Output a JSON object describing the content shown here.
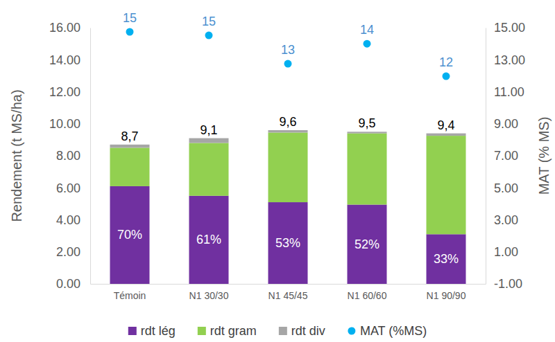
{
  "chart_data": {
    "type": "bar",
    "stacked": true,
    "grid": false,
    "legend": "bottom",
    "categories": [
      "Témoin",
      "N1 30/30",
      "N1 45/45",
      "N1 60/60",
      "N1 90/90"
    ],
    "y_label": "Rendement (t MS/ha)",
    "y2_label": "MAT (% MS)",
    "ylim": [
      0,
      16
    ],
    "yticks": [
      {
        "value": 0,
        "label": "0.00"
      },
      {
        "value": 2,
        "label": "2.00"
      },
      {
        "value": 4,
        "label": "4.00"
      },
      {
        "value": 6,
        "label": "6.00"
      },
      {
        "value": 8,
        "label": "8.00"
      },
      {
        "value": 10,
        "label": "10.00"
      },
      {
        "value": 12,
        "label": "12.00"
      },
      {
        "value": 14,
        "label": "14.00"
      },
      {
        "value": 16,
        "label": "16.00"
      }
    ],
    "y2lim": [
      -1,
      15
    ],
    "y2ticks": [
      {
        "value": -1,
        "label": "-1.00"
      },
      {
        "value": 1,
        "label": "1.00"
      },
      {
        "value": 3,
        "label": "3.00"
      },
      {
        "value": 5,
        "label": "5.00"
      },
      {
        "value": 7,
        "label": "7.00"
      },
      {
        "value": 9,
        "label": "9.00"
      },
      {
        "value": 11,
        "label": "11.00"
      },
      {
        "value": 13,
        "label": "13.00"
      },
      {
        "value": 15,
        "label": "15.00"
      }
    ],
    "series": [
      {
        "name": "rdt lég",
        "color": "#7030a0",
        "values": [
          6.1,
          5.5,
          5.1,
          4.95,
          3.1
        ]
      },
      {
        "name": "rdt gram",
        "color": "#92d050",
        "values": [
          2.4,
          3.3,
          4.35,
          4.45,
          6.15
        ]
      },
      {
        "name": "rdt div",
        "color": "#a6a6a6",
        "values": [
          0.2,
          0.3,
          0.15,
          0.1,
          0.15
        ]
      },
      {
        "name": "MAT (%MS)",
        "type": "scatter",
        "axis": "y2",
        "color": "#00b0f0",
        "marker": "circle",
        "data_labels": true,
        "values": [
          14.74,
          14.52,
          12.75,
          14.0,
          11.97
        ],
        "value_labels": [
          "15",
          "15",
          "13",
          "14",
          "12"
        ]
      }
    ],
    "totals": {
      "values": [
        8.7,
        9.1,
        9.6,
        9.5,
        9.4
      ],
      "labels": [
        "8,7",
        "9,1",
        "9,6",
        "9,5",
        "9,4"
      ]
    },
    "shares": {
      "values": [
        70,
        61,
        53,
        52,
        33
      ],
      "labels": [
        "70%",
        "61%",
        "53%",
        "52%",
        "33%"
      ]
    }
  }
}
